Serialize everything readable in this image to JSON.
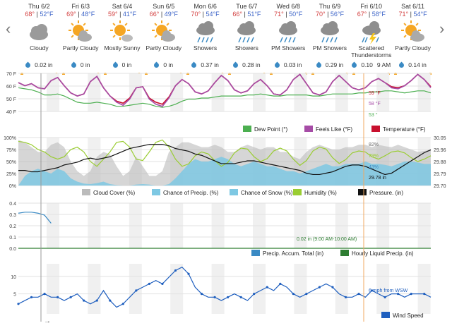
{
  "forecast": [
    {
      "date": "Thu 6/2",
      "hi": "68°",
      "lo": "52°F",
      "cond": "Cloudy",
      "icon": "cloudy-icon",
      "precip": "0.02 in"
    },
    {
      "date": "Fri 6/3",
      "hi": "69°",
      "lo": "48°F",
      "cond": "Partly Cloudy",
      "icon": "partly-cloudy-icon",
      "precip": "0 in"
    },
    {
      "date": "Sat 6/4",
      "hi": "59°",
      "lo": "41°F",
      "cond": "Mostly Sunny",
      "icon": "mostly-sunny-icon",
      "precip": "0 in"
    },
    {
      "date": "Sun 6/5",
      "hi": "66°",
      "lo": "49°F",
      "cond": "Partly Cloudy",
      "icon": "partly-cloudy-icon",
      "precip": "0 in"
    },
    {
      "date": "Mon 6/6",
      "hi": "70°",
      "lo": "54°F",
      "cond": "Showers",
      "icon": "showers-icon",
      "precip": "0.37 in"
    },
    {
      "date": "Tue 6/7",
      "hi": "66°",
      "lo": "51°F",
      "cond": "Showers",
      "icon": "showers-icon",
      "precip": "0.28 in"
    },
    {
      "date": "Wed 6/8",
      "hi": "71°",
      "lo": "50°F",
      "cond": "PM Showers",
      "icon": "showers-icon",
      "precip": "0.03 in"
    },
    {
      "date": "Thu 6/9",
      "hi": "70°",
      "lo": "56°F",
      "cond": "PM Showers",
      "icon": "showers-icon",
      "precip": "0.29 in"
    },
    {
      "date": "Fri 6/10",
      "hi": "67°",
      "lo": "58°F",
      "cond": "Scattered Thunderstorms",
      "icon": "thunderstorm-icon",
      "precip": "0.10",
      "time": "9 AM"
    },
    {
      "date": "Sat 6/11",
      "hi": "71°",
      "lo": "54°F",
      "cond": "Partly Cloudy",
      "icon": "partly-cloudy-icon",
      "precip": "0.14 in"
    }
  ],
  "nav": {
    "prev": "‹",
    "next": "›"
  },
  "colors": {
    "temp": "#c8102e",
    "dew": "#4caf50",
    "feels": "#a64ca6",
    "cloud": "#bbbbbb",
    "chance_precip": "#7ec8e3",
    "humidity": "#9acd32",
    "pressure": "#111111",
    "accum": "#3a8ac4",
    "hourly": "#2e7d32",
    "wind": "#1f5fbf"
  },
  "chart_data": [
    {
      "type": "line",
      "yticks": [
        "70 F",
        "60 F",
        "50 F",
        "40 F"
      ],
      "ylim": [
        35,
        72
      ],
      "legend": [
        "Dew Point (°)",
        "Feels Like (°F)",
        "Temperature (°F)"
      ],
      "annotations": [
        "59 °F",
        "58 °F",
        "53 °"
      ],
      "series": [
        {
          "name": "Temperature (°F)",
          "values": [
            63,
            60,
            62,
            58,
            57,
            65,
            68,
            60,
            53,
            50,
            52,
            64,
            69,
            58,
            50,
            45,
            43,
            48,
            58,
            59,
            48,
            44,
            42,
            49,
            60,
            66,
            62,
            54,
            52,
            55,
            63,
            70,
            65,
            56,
            53,
            55,
            62,
            66,
            60,
            52,
            51,
            56,
            66,
            71,
            62,
            53,
            51,
            54,
            64,
            70,
            64,
            58,
            56,
            58,
            64,
            67,
            63,
            59,
            58,
            60,
            65,
            71,
            66,
            59
          ]
        },
        {
          "name": "Feels Like (°F)",
          "values": [
            63,
            60,
            62,
            58,
            57,
            65,
            68,
            60,
            53,
            50,
            52,
            64,
            69,
            58,
            50,
            44,
            41,
            47,
            58,
            59,
            47,
            42,
            40,
            48,
            60,
            66,
            62,
            54,
            52,
            55,
            63,
            70,
            65,
            56,
            53,
            55,
            62,
            66,
            60,
            52,
            51,
            56,
            66,
            71,
            62,
            53,
            51,
            54,
            64,
            70,
            64,
            58,
            56,
            58,
            64,
            67,
            63,
            58,
            57,
            60,
            65,
            71,
            66,
            58
          ]
        },
        {
          "name": "Dew Point (°)",
          "values": [
            58,
            57,
            56,
            54,
            51,
            51,
            52,
            50,
            47,
            44,
            43,
            43,
            44,
            43,
            42,
            40,
            40,
            41,
            42,
            43,
            42,
            40,
            39,
            40,
            42,
            45,
            47,
            47,
            48,
            48,
            49,
            50,
            50,
            50,
            50,
            51,
            51,
            52,
            51,
            50,
            50,
            51,
            51,
            51,
            51,
            50,
            50,
            51,
            52,
            52,
            52,
            52,
            53,
            53,
            54,
            54,
            55,
            55,
            54,
            53,
            54,
            55,
            55,
            53
          ]
        }
      ]
    },
    {
      "type": "area",
      "yticks": [
        "100%",
        "75%",
        "50%",
        "25%",
        "0%"
      ],
      "yticks_right": [
        "30.05",
        "29.96",
        "29.88",
        "29.79",
        "29.70"
      ],
      "ylim": [
        0,
        100
      ],
      "y2lim": [
        29.7,
        30.05
      ],
      "legend": [
        "Cloud Cover (%)",
        "Chance of Precip. (%)",
        "Chance of Snow (%)",
        "Humidity (%)",
        "Pressure. (in)"
      ],
      "annotations": [
        "82%",
        "79%",
        "43%",
        "29.78 in"
      ],
      "series": [
        {
          "name": "Cloud Cover (%)",
          "values": [
            95,
            90,
            80,
            70,
            70,
            85,
            90,
            80,
            50,
            30,
            20,
            30,
            60,
            70,
            65,
            40,
            20,
            30,
            60,
            40,
            20,
            20,
            30,
            70,
            80,
            90,
            90,
            85,
            80,
            80,
            85,
            80,
            70,
            70,
            80,
            85,
            80,
            75,
            80,
            80,
            70,
            70,
            60,
            55,
            70,
            80,
            85,
            80,
            75,
            75,
            80,
            80,
            85,
            85,
            80,
            85,
            82,
            80,
            85,
            80,
            75,
            70,
            72,
            75
          ]
        },
        {
          "name": "Chance of Precip. (%)",
          "values": [
            0,
            20,
            30,
            35,
            30,
            25,
            35,
            30,
            15,
            8,
            4,
            3,
            5,
            8,
            3,
            1,
            0,
            0,
            2,
            3,
            2,
            0,
            0,
            3,
            15,
            30,
            45,
            55,
            50,
            50,
            55,
            60,
            55,
            45,
            40,
            45,
            50,
            45,
            40,
            40,
            35,
            30,
            30,
            25,
            30,
            35,
            40,
            45,
            40,
            40,
            45,
            45,
            45,
            50,
            45,
            45,
            43,
            40,
            45,
            50,
            50,
            48,
            45,
            45
          ]
        },
        {
          "name": "Humidity (%)",
          "values": [
            92,
            90,
            85,
            75,
            70,
            60,
            55,
            60,
            75,
            80,
            70,
            50,
            40,
            55,
            70,
            90,
            92,
            80,
            55,
            52,
            70,
            90,
            95,
            80,
            55,
            40,
            45,
            62,
            70,
            66,
            52,
            40,
            48,
            68,
            78,
            76,
            60,
            50,
            56,
            72,
            78,
            72,
            55,
            42,
            52,
            72,
            80,
            76,
            58,
            46,
            54,
            68,
            72,
            70,
            60,
            55,
            62,
            70,
            72,
            68,
            58,
            50,
            55,
            62
          ]
        },
        {
          "name": "Pressure. (in)",
          "values": [
            29.81,
            29.81,
            29.8,
            29.8,
            29.81,
            29.82,
            29.83,
            29.85,
            29.86,
            29.87,
            29.89,
            29.9,
            29.89,
            29.9,
            29.91,
            29.93,
            29.95,
            29.97,
            29.98,
            29.99,
            30.0,
            30.0,
            30.0,
            29.99,
            29.97,
            29.96,
            29.95,
            29.93,
            29.92,
            29.9,
            29.88,
            29.86,
            29.86,
            29.86,
            29.87,
            29.88,
            29.88,
            29.87,
            29.86,
            29.85,
            29.84,
            29.83,
            29.82,
            29.81,
            29.79,
            29.78,
            29.78,
            29.79,
            29.8,
            29.82,
            29.84,
            29.85,
            29.85,
            29.84,
            29.82,
            29.8,
            29.78,
            29.79,
            29.82,
            29.85,
            29.88,
            29.91,
            29.94,
            29.96
          ]
        }
      ]
    },
    {
      "type": "line",
      "yticks": [
        "0.4",
        "0.3",
        "0.2",
        "0.1",
        "0.0"
      ],
      "ylim": [
        0,
        0.45
      ],
      "legend": [
        "Precip. Accum. Total (in)",
        "Hourly Liquid Precip. (in)"
      ],
      "annotations": [
        "0.02 in (9:00 AM-10:00 AM)"
      ],
      "series": [
        {
          "name": "Precip. Accum. Total (in)",
          "values": [
            0.35,
            0.36,
            0.36,
            0.35,
            0.33,
            0.25
          ]
        },
        {
          "name": "Hourly Liquid Precip. (in)",
          "values": [
            0,
            0,
            0,
            0,
            0,
            0,
            0,
            0,
            0,
            0,
            0,
            0,
            0,
            0,
            0,
            0,
            0,
            0,
            0,
            0,
            0,
            0,
            0,
            0,
            0,
            0,
            0,
            0,
            0,
            0,
            0,
            0,
            0,
            0,
            0,
            0,
            0,
            0,
            0,
            0,
            0,
            0,
            0,
            0,
            0,
            0,
            0,
            0,
            0,
            0,
            0,
            0,
            0,
            0,
            0,
            0,
            0,
            0,
            0,
            0,
            0,
            0,
            0,
            0
          ]
        }
      ]
    },
    {
      "type": "line",
      "yticks": [
        "10",
        "5"
      ],
      "ylim": [
        0,
        15
      ],
      "legend": [
        "Wind Speed"
      ],
      "annotations": [
        "6 mph from WSW"
      ],
      "series": [
        {
          "name": "Wind Speed",
          "values": [
            3,
            4,
            5,
            5,
            6,
            5,
            5,
            4,
            5,
            6,
            4,
            3,
            4,
            7,
            4,
            2,
            3,
            5,
            7,
            8,
            9,
            10,
            9,
            11,
            13,
            14,
            12,
            8,
            6,
            5,
            5,
            4,
            5,
            6,
            5,
            4,
            6,
            7,
            8,
            7,
            9,
            8,
            6,
            5,
            6,
            7,
            8,
            9,
            8,
            6,
            5,
            5,
            6,
            5,
            7,
            6,
            5,
            6,
            6,
            5,
            6,
            6,
            6,
            5
          ]
        }
      ]
    }
  ],
  "cursor_arrow": "→"
}
